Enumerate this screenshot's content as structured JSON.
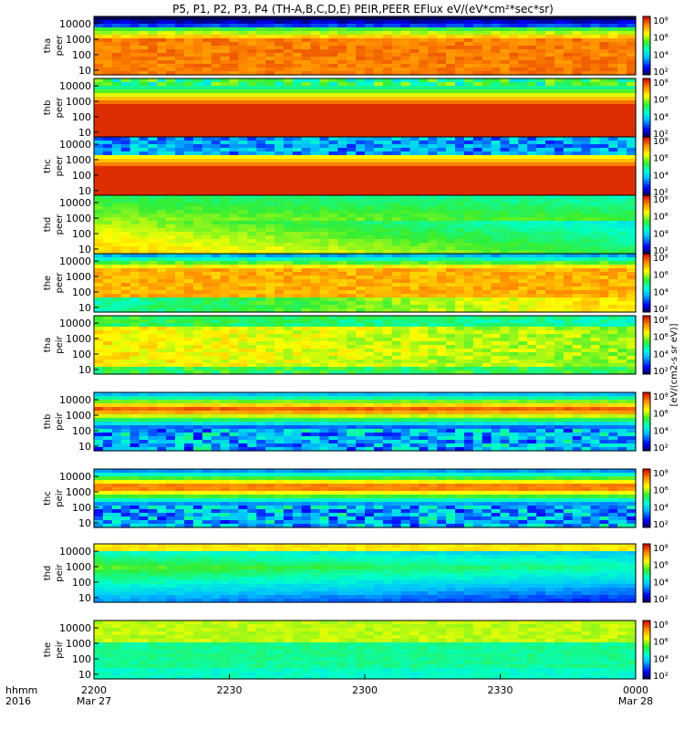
{
  "chart_data": {
    "type": "heatmap",
    "title": "P5, P1, P2, P3, P4 (TH-A,B,C,D,E) PEIR,PEER EFlux eV/(eV*cm²*sec*sr)",
    "time_label": "hhmm",
    "year_label": "2016",
    "x_ticks": [
      "2200",
      "2230",
      "2300",
      "2330",
      "0000"
    ],
    "x_dates": [
      "Mar 27",
      "",
      "",
      "",
      "Mar 28"
    ],
    "y_scale": "log",
    "y_range": [
      5,
      30000
    ],
    "y_ticks": [
      "10000",
      "1000",
      "100",
      "10"
    ],
    "colorbar_ticks": [
      "10⁸",
      "10⁶",
      "10⁴",
      "10²"
    ],
    "colorbar_label": "[eV/(cm2-s sr eV)]",
    "panels": [
      {
        "probe": "tha",
        "species": "peer",
        "ytick_labels": [
          "10000",
          "1000",
          "100",
          "10"
        ]
      },
      {
        "probe": "thb",
        "species": "peer",
        "ytick_labels": [
          "10000",
          "1000",
          "100",
          "10"
        ]
      },
      {
        "probe": "thc",
        "species": "peer",
        "ytick_labels": [
          "10000",
          "1000",
          "100",
          "10"
        ]
      },
      {
        "probe": "thd",
        "species": "peer",
        "ytick_labels": [
          "10000",
          "1000",
          "100",
          "10"
        ]
      },
      {
        "probe": "the",
        "species": "peer",
        "ytick_labels": [
          "10000",
          "1000",
          "100",
          "10"
        ]
      },
      {
        "probe": "tha",
        "species": "peir",
        "ytick_labels": [
          "10000",
          "1000",
          "100",
          "10"
        ]
      },
      {
        "probe": "thb",
        "species": "peir",
        "ytick_labels": [
          "10000",
          "1000",
          "100",
          "10"
        ]
      },
      {
        "probe": "thc",
        "species": "peir",
        "ytick_labels": [
          "10000",
          "1000",
          "100",
          "10"
        ]
      },
      {
        "probe": "thd",
        "species": "peir",
        "ytick_labels": [
          "10000",
          "1000",
          "100",
          "10"
        ]
      },
      {
        "probe": "the",
        "species": "peir",
        "ytick_labels": [
          "10000",
          "1000",
          "100",
          "10"
        ]
      }
    ]
  }
}
